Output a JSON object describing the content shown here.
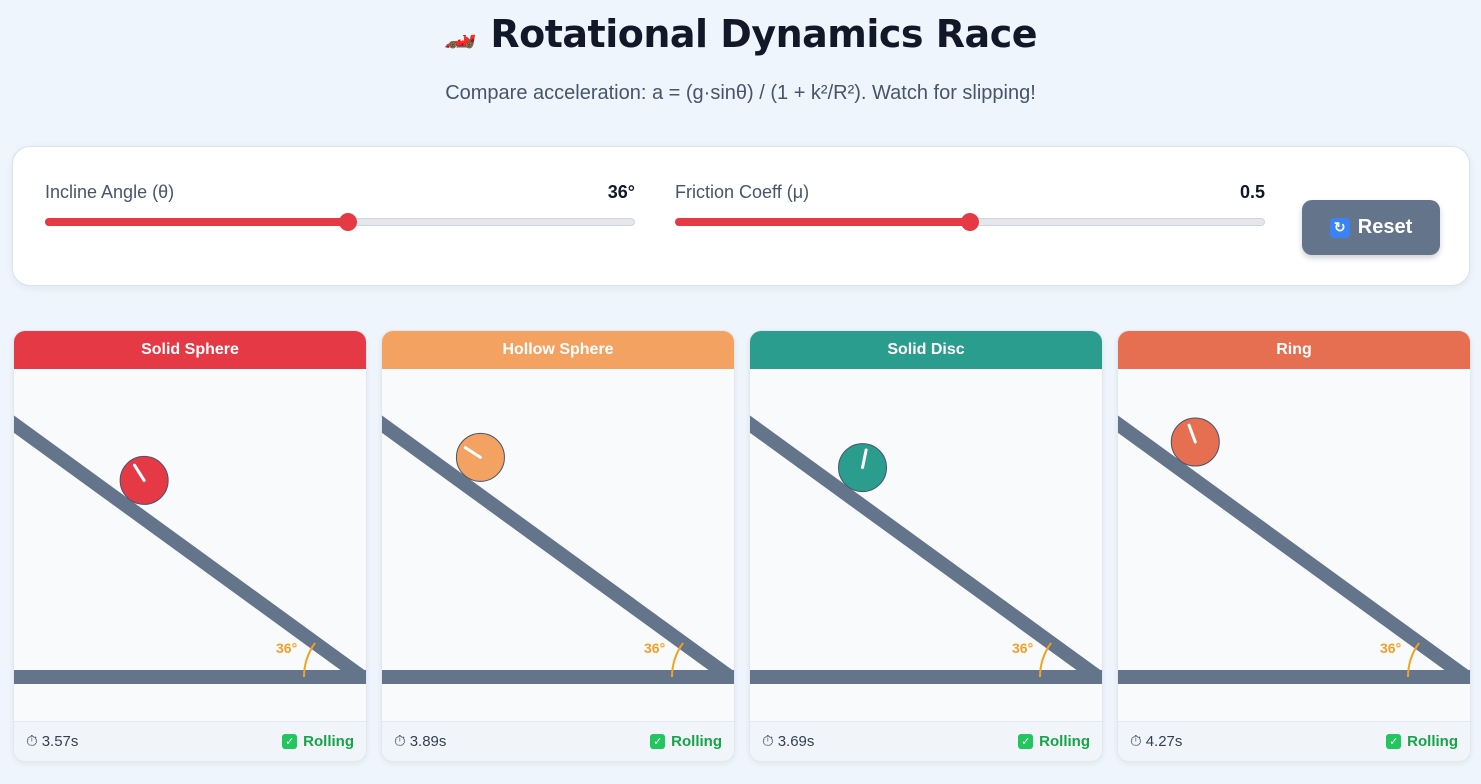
{
  "header": {
    "icon": "🏎️",
    "title": "Rotational Dynamics Race",
    "subtitle": "Compare acceleration: a = (g·sinθ) / (1 + k²/R²). Watch for slipping!"
  },
  "controls": {
    "angle": {
      "label": "Incline Angle (θ)",
      "value_text": "36°",
      "value": 36,
      "min": 0,
      "max": 70
    },
    "friction": {
      "label": "Friction Coeff (μ)",
      "value_text": "0.5",
      "value": 0.5,
      "min": 0,
      "max": 1
    },
    "reset_icon": "refresh-icon",
    "reset_label": "Reset"
  },
  "cards": [
    {
      "title": "Solid Sphere",
      "color": "#e63946",
      "time": "3.57s",
      "status": "Rolling",
      "angle_label": "36°",
      "progress": 0.33
    },
    {
      "title": "Hollow Sphere",
      "color": "#f4a261",
      "time": "3.89s",
      "status": "Rolling",
      "angle_label": "36°",
      "progress": 0.24
    },
    {
      "title": "Solid Disc",
      "color": "#2a9d8f",
      "time": "3.69s",
      "status": "Rolling",
      "angle_label": "36°",
      "progress": 0.28
    },
    {
      "title": "Ring",
      "color": "#e76f51",
      "time": "4.27s",
      "status": "Rolling",
      "angle_label": "36°",
      "progress": 0.18
    }
  ]
}
